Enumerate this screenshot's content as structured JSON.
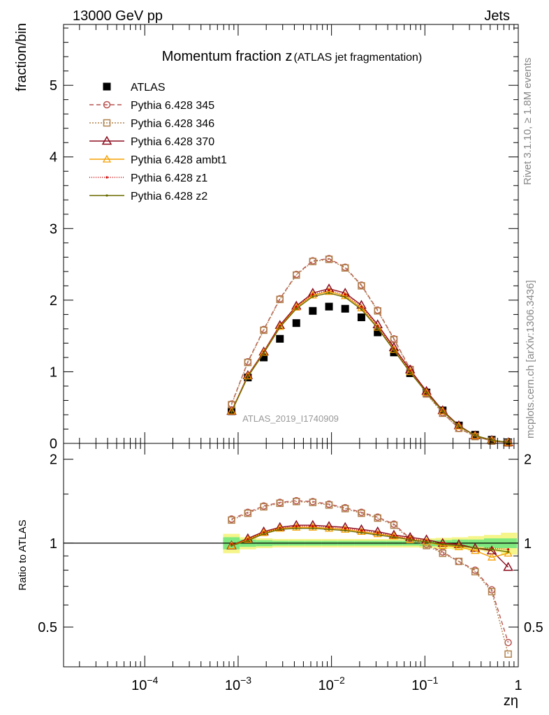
{
  "header": {
    "left": "13000 GeV pp",
    "right": "Jets"
  },
  "side_labels": {
    "rivet": "Rivet 3.1.10, ≥ 1.8M events",
    "mcplots": "mcplots.cern.ch [arXiv:1306.3436]"
  },
  "colors": {
    "data": "#000000",
    "p345": "#b8514f",
    "p346": "#b0804a",
    "p370": "#8b0d1e",
    "ambt1": "#f5a000",
    "z1": "#cc0000",
    "z2": "#6b6b00",
    "band_inner": "#7fe87f",
    "band_outer": "#f5f58a"
  },
  "chart_data": [
    {
      "type": "line",
      "title": "Momentum fraction z",
      "title_small": "(ATLAS jet fragmentation)",
      "ylabel": "fraction/bin",
      "watermark": "ATLAS_2019_I1740909",
      "xscale": "log",
      "xlim": [
        1.35e-05,
        1.0
      ],
      "ylim": [
        0,
        5.85
      ],
      "yticks": [
        0,
        1,
        2,
        3,
        4,
        5
      ],
      "ytick_labels": [
        "0",
        "1",
        "2",
        "3",
        "4",
        "5"
      ],
      "legend_position": "top-left",
      "x": [
        0.00085,
        0.00127,
        0.00188,
        0.0028,
        0.0042,
        0.0063,
        0.0094,
        0.014,
        0.0209,
        0.0312,
        0.0466,
        0.0695,
        0.104,
        0.155,
        0.231,
        0.345,
        0.52,
        0.78
      ],
      "series": [
        {
          "name": "ATLAS",
          "key": "data",
          "marker": "square",
          "values": [
            0.45,
            0.92,
            1.2,
            1.46,
            1.68,
            1.85,
            1.91,
            1.88,
            1.76,
            1.55,
            1.27,
            0.98,
            0.71,
            0.46,
            0.25,
            0.12,
            0.05,
            0.015
          ]
        },
        {
          "name": "Pythia 6.428 345",
          "key": "p345",
          "marker": "circle",
          "dash": "6,4",
          "values": [
            0.55,
            1.14,
            1.59,
            2.02,
            2.36,
            2.55,
            2.58,
            2.46,
            2.21,
            1.86,
            1.46,
            1.04,
            0.7,
            0.43,
            0.21,
            0.1,
            0.033,
            0.008
          ]
        },
        {
          "name": "Pythia 6.428 346",
          "key": "p346",
          "marker": "open-square",
          "dash": "2,2",
          "values": [
            0.54,
            1.13,
            1.58,
            2.01,
            2.35,
            2.54,
            2.57,
            2.45,
            2.2,
            1.85,
            1.45,
            1.03,
            0.69,
            0.42,
            0.21,
            0.095,
            0.032,
            0.006
          ]
        },
        {
          "name": "Pythia 6.428 370",
          "key": "p370",
          "marker": "triangle",
          "dash": "",
          "values": [
            0.45,
            0.95,
            1.28,
            1.65,
            1.92,
            2.1,
            2.16,
            2.1,
            1.93,
            1.66,
            1.34,
            1.03,
            0.73,
            0.46,
            0.25,
            0.11,
            0.045,
            0.012
          ]
        },
        {
          "name": "Pythia 6.428 ambt1",
          "key": "ambt1",
          "marker": "open-triangle",
          "dash": "",
          "values": [
            0.45,
            0.94,
            1.27,
            1.63,
            1.9,
            2.07,
            2.12,
            2.06,
            1.89,
            1.62,
            1.31,
            1.0,
            0.71,
            0.45,
            0.24,
            0.11,
            0.044,
            0.014
          ]
        },
        {
          "name": "Pythia 6.428 z1",
          "key": "z1",
          "marker": "dot",
          "dash": "1,2",
          "values": [
            0.45,
            0.94,
            1.28,
            1.64,
            1.91,
            2.08,
            2.14,
            2.08,
            1.91,
            1.64,
            1.32,
            1.01,
            0.72,
            0.46,
            0.24,
            0.11,
            0.046,
            0.015
          ]
        },
        {
          "name": "Pythia 6.428 z2",
          "key": "z2",
          "marker": "dot",
          "dash": "",
          "values": [
            0.44,
            0.93,
            1.26,
            1.62,
            1.88,
            2.05,
            2.1,
            2.04,
            1.87,
            1.61,
            1.3,
            0.99,
            0.71,
            0.45,
            0.24,
            0.11,
            0.045,
            0.014
          ]
        }
      ]
    },
    {
      "type": "line",
      "ylabel": "Ratio to ATLAS",
      "xlabel": "zη",
      "xscale": "log",
      "xlim": [
        1.35e-05,
        1.0
      ],
      "ylim": [
        0.36,
        2.28
      ],
      "yticks": [
        0.5,
        1,
        2
      ],
      "ytick_labels": [
        "0.5",
        "1",
        "2"
      ],
      "xticks": [
        0.0001,
        0.001,
        0.01,
        0.1,
        1
      ],
      "xtick_labels": [
        "10",
        "10",
        "10",
        "10",
        "1"
      ],
      "xtick_exponents": [
        "−4",
        "−3",
        "−2",
        "−1",
        ""
      ],
      "x": [
        0.00085,
        0.00127,
        0.00188,
        0.0028,
        0.0042,
        0.0063,
        0.0094,
        0.014,
        0.0209,
        0.0312,
        0.0466,
        0.0695,
        0.104,
        0.155,
        0.231,
        0.345,
        0.52,
        0.78
      ],
      "band": {
        "x_edges": [
          0.00069,
          0.00104,
          0.00156,
          0.00233,
          0.0035,
          0.0052,
          0.0078,
          0.0117,
          0.0175,
          0.0262,
          0.039,
          0.058,
          0.087,
          0.13,
          0.194,
          0.29,
          0.43,
          0.65,
          0.97
        ],
        "inner": [
          0.05,
          0.03,
          0.025,
          0.02,
          0.02,
          0.02,
          0.02,
          0.02,
          0.02,
          0.02,
          0.02,
          0.02,
          0.025,
          0.025,
          0.03,
          0.03,
          0.04,
          0.04
        ],
        "outer": [
          0.08,
          0.05,
          0.04,
          0.035,
          0.035,
          0.035,
          0.035,
          0.035,
          0.035,
          0.035,
          0.035,
          0.035,
          0.04,
          0.045,
          0.05,
          0.06,
          0.07,
          0.09
        ]
      },
      "series": [
        {
          "name": "Pythia 6.428 345",
          "key": "p345",
          "marker": "circle",
          "dash": "6,4",
          "values": [
            1.22,
            1.29,
            1.36,
            1.4,
            1.42,
            1.41,
            1.38,
            1.34,
            1.29,
            1.24,
            1.17,
            1.04,
            0.99,
            0.93,
            0.86,
            0.8,
            0.68,
            0.44
          ]
        },
        {
          "name": "Pythia 6.428 346",
          "key": "p346",
          "marker": "open-square",
          "dash": "2,2",
          "values": [
            1.21,
            1.28,
            1.35,
            1.39,
            1.41,
            1.4,
            1.37,
            1.33,
            1.28,
            1.23,
            1.16,
            1.03,
            0.98,
            0.92,
            0.86,
            0.79,
            0.67,
            0.4
          ]
        },
        {
          "name": "Pythia 6.428 370",
          "key": "p370",
          "marker": "triangle",
          "dash": "",
          "values": [
            0.98,
            1.04,
            1.1,
            1.14,
            1.16,
            1.16,
            1.15,
            1.14,
            1.12,
            1.1,
            1.07,
            1.05,
            1.03,
            1.0,
            0.99,
            0.96,
            0.94,
            0.82
          ]
        },
        {
          "name": "Pythia 6.428 ambt1",
          "key": "ambt1",
          "marker": "open-triangle",
          "dash": "",
          "values": [
            0.98,
            1.03,
            1.09,
            1.13,
            1.14,
            1.14,
            1.13,
            1.12,
            1.1,
            1.08,
            1.06,
            1.03,
            1.01,
            0.98,
            0.97,
            0.94,
            0.89,
            0.92
          ]
        },
        {
          "name": "Pythia 6.428 z1",
          "key": "z1",
          "marker": "dot",
          "dash": "1,2",
          "values": [
            0.99,
            1.03,
            1.09,
            1.13,
            1.15,
            1.15,
            1.14,
            1.13,
            1.11,
            1.09,
            1.06,
            1.04,
            1.02,
            1.0,
            0.98,
            0.96,
            0.96,
            0.95
          ]
        },
        {
          "name": "Pythia 6.428 z2",
          "key": "z2",
          "marker": "dot",
          "dash": "",
          "values": [
            0.98,
            1.02,
            1.08,
            1.12,
            1.13,
            1.13,
            1.12,
            1.11,
            1.09,
            1.07,
            1.05,
            1.03,
            1.01,
            0.99,
            0.98,
            0.96,
            0.95,
            0.93
          ]
        }
      ]
    }
  ]
}
